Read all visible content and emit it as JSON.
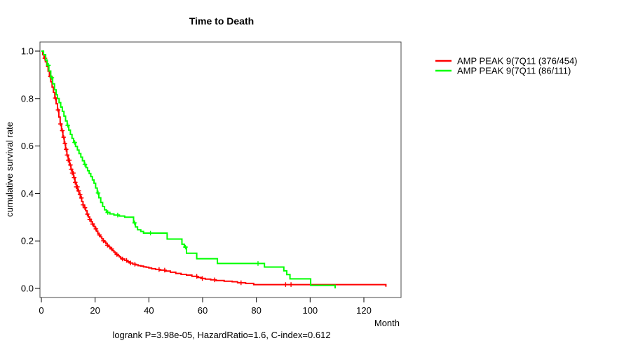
{
  "title": "Time to Death",
  "y_axis": {
    "label": "cumulative survival rate"
  },
  "x_axis": {
    "label": "Month"
  },
  "caption": "logrank P=3.98e-05, HazardRatio=1.6, C-index=0.612",
  "legend": {
    "items": [
      {
        "label": "AMP PEAK  9(7Q11 (376/454)",
        "color": "#ff0000"
      },
      {
        "label": "AMP PEAK  9(7Q11 (86/111)",
        "color": "#00ff00"
      }
    ]
  },
  "chart_data": {
    "type": "line",
    "subtype": "kaplan-meier-step",
    "title": "Time to Death",
    "xlabel": "Month",
    "ylabel": "cumulative survival rate",
    "xlim": [
      0,
      134
    ],
    "ylim": [
      0,
      1.0
    ],
    "grid": false,
    "legend_position": "top-right-outside",
    "x_ticks": [
      0,
      20,
      40,
      60,
      80,
      100,
      120
    ],
    "x_tick_labels": [
      "0",
      "20",
      "40",
      "60",
      "80",
      "100",
      "120"
    ],
    "y_ticks": [
      0.0,
      0.2,
      0.4,
      0.6,
      0.8,
      1.0
    ],
    "y_tick_labels": [
      "0.0",
      "0.2",
      "0.4",
      "0.6",
      "0.8",
      "1.0"
    ],
    "annotation": "logrank P=3.98e-05, HazardRatio=1.6, C-index=0.612",
    "series": [
      {
        "name": "AMP PEAK  9(7Q11 (376/454)",
        "events_over_n": "376/454",
        "color": "#ff0000",
        "step_points": [
          [
            0,
            1.0
          ],
          [
            0.5,
            0.985
          ],
          [
            1,
            0.97
          ],
          [
            1.5,
            0.955
          ],
          [
            2,
            0.935
          ],
          [
            2.5,
            0.915
          ],
          [
            3,
            0.893
          ],
          [
            3.5,
            0.871
          ],
          [
            4,
            0.848
          ],
          [
            4.5,
            0.826
          ],
          [
            5,
            0.802
          ],
          [
            5.5,
            0.778
          ],
          [
            6,
            0.752
          ],
          [
            6.5,
            0.722
          ],
          [
            7,
            0.693
          ],
          [
            7.5,
            0.665
          ],
          [
            8,
            0.637
          ],
          [
            8.5,
            0.611
          ],
          [
            9,
            0.586
          ],
          [
            9.5,
            0.562
          ],
          [
            10,
            0.54
          ],
          [
            10.5,
            0.52
          ],
          [
            11,
            0.502
          ],
          [
            11.5,
            0.486
          ],
          [
            12,
            0.467
          ],
          [
            12.5,
            0.447
          ],
          [
            13,
            0.428
          ],
          [
            13.5,
            0.411
          ],
          [
            14,
            0.396
          ],
          [
            14.5,
            0.381
          ],
          [
            15,
            0.366
          ],
          [
            15.5,
            0.352
          ],
          [
            16,
            0.34
          ],
          [
            16.5,
            0.327
          ],
          [
            17,
            0.313
          ],
          [
            17.5,
            0.301
          ],
          [
            18,
            0.291
          ],
          [
            18.5,
            0.281
          ],
          [
            19,
            0.271
          ],
          [
            19.5,
            0.261
          ],
          [
            20,
            0.251
          ],
          [
            20.5,
            0.241
          ],
          [
            21,
            0.232
          ],
          [
            21.5,
            0.225
          ],
          [
            22,
            0.217
          ],
          [
            22.5,
            0.209
          ],
          [
            23,
            0.201
          ],
          [
            23.5,
            0.196
          ],
          [
            24,
            0.19
          ],
          [
            24.5,
            0.182
          ],
          [
            25,
            0.176
          ],
          [
            25.5,
            0.171
          ],
          [
            26,
            0.166
          ],
          [
            26.5,
            0.159
          ],
          [
            27,
            0.153
          ],
          [
            27.5,
            0.148
          ],
          [
            28,
            0.143
          ],
          [
            28.5,
            0.138
          ],
          [
            29,
            0.133
          ],
          [
            29.5,
            0.128
          ],
          [
            30,
            0.124
          ],
          [
            31,
            0.118
          ],
          [
            32,
            0.112
          ],
          [
            33,
            0.107
          ],
          [
            34,
            0.102
          ],
          [
            35,
            0.099
          ],
          [
            36,
            0.096
          ],
          [
            37,
            0.094
          ],
          [
            38,
            0.091
          ],
          [
            39,
            0.089
          ],
          [
            40,
            0.086
          ],
          [
            41,
            0.083
          ],
          [
            42.5,
            0.08
          ],
          [
            44,
            0.077
          ],
          [
            46,
            0.073
          ],
          [
            48,
            0.068
          ],
          [
            50,
            0.063
          ],
          [
            52,
            0.059
          ],
          [
            54,
            0.056
          ],
          [
            56,
            0.051
          ],
          [
            58,
            0.046
          ],
          [
            59.5,
            0.042
          ],
          [
            61,
            0.039
          ],
          [
            63,
            0.036
          ],
          [
            65,
            0.033
          ],
          [
            68,
            0.03
          ],
          [
            71,
            0.028
          ],
          [
            73,
            0.024
          ],
          [
            76,
            0.021
          ],
          [
            79,
            0.016
          ],
          [
            128.2,
            0.007
          ]
        ],
        "censor_months": [
          1.3,
          3.4,
          5.2,
          6.2,
          7.1,
          7.8,
          8.3,
          8.8,
          9.2,
          9.6,
          10.0,
          10.4,
          10.8,
          11.1,
          11.5,
          11.9,
          12.2,
          12.6,
          13.0,
          13.4,
          13.9,
          14.4,
          14.9,
          15.5,
          16.2,
          17.1,
          18.0,
          19.1,
          20.3,
          21.6,
          23.1,
          24.6,
          26.2,
          28.1,
          30.2,
          31.7,
          33.2,
          34.8,
          43.8,
          45.9,
          57.8,
          59.9,
          64.5,
          74.3,
          90.9,
          92.9
        ]
      },
      {
        "name": "AMP PEAK  9(7Q11 (86/111)",
        "events_over_n": "86/111",
        "color": "#00ff00",
        "step_points": [
          [
            0,
            1.0
          ],
          [
            0.8,
            0.985
          ],
          [
            1.6,
            0.962
          ],
          [
            2.2,
            0.94
          ],
          [
            2.8,
            0.916
          ],
          [
            3.5,
            0.888
          ],
          [
            4.2,
            0.862
          ],
          [
            4.9,
            0.837
          ],
          [
            5.5,
            0.816
          ],
          [
            6,
            0.8
          ],
          [
            6.6,
            0.783
          ],
          [
            7.2,
            0.764
          ],
          [
            7.8,
            0.746
          ],
          [
            8.4,
            0.726
          ],
          [
            9,
            0.706
          ],
          [
            9.6,
            0.687
          ],
          [
            10.2,
            0.667
          ],
          [
            10.8,
            0.649
          ],
          [
            11.4,
            0.632
          ],
          [
            12,
            0.615
          ],
          [
            12.7,
            0.598
          ],
          [
            13.4,
            0.583
          ],
          [
            14,
            0.568
          ],
          [
            14.7,
            0.553
          ],
          [
            15.3,
            0.538
          ],
          [
            16,
            0.523
          ],
          [
            16.6,
            0.509
          ],
          [
            17.2,
            0.496
          ],
          [
            17.8,
            0.484
          ],
          [
            18.4,
            0.471
          ],
          [
            19,
            0.457
          ],
          [
            19.6,
            0.443
          ],
          [
            20.2,
            0.423
          ],
          [
            20.8,
            0.402
          ],
          [
            21.4,
            0.382
          ],
          [
            22.1,
            0.362
          ],
          [
            22.8,
            0.345
          ],
          [
            23.5,
            0.331
          ],
          [
            24.2,
            0.32
          ],
          [
            25.5,
            0.314
          ],
          [
            27,
            0.309
          ],
          [
            29,
            0.305
          ],
          [
            31,
            0.3
          ],
          [
            34.3,
            0.276
          ],
          [
            35,
            0.259
          ],
          [
            35.8,
            0.247
          ],
          [
            37,
            0.24
          ],
          [
            38,
            0.233
          ],
          [
            46.8,
            0.208
          ],
          [
            52.3,
            0.186
          ],
          [
            53.2,
            0.174
          ],
          [
            54,
            0.148
          ],
          [
            57.8,
            0.125
          ],
          [
            65.5,
            0.105
          ],
          [
            83,
            0.09
          ],
          [
            90.2,
            0.074
          ],
          [
            91.3,
            0.058
          ],
          [
            92.5,
            0.04
          ],
          [
            100.2,
            0.013
          ],
          [
            109.3,
            0.0
          ]
        ],
        "censor_months": [
          2.6,
          3.9,
          9.8,
          12.4,
          16.2,
          21.1,
          24.7,
          28.4,
          34.7,
          40.6,
          53.6,
          80.6
        ]
      }
    ]
  }
}
